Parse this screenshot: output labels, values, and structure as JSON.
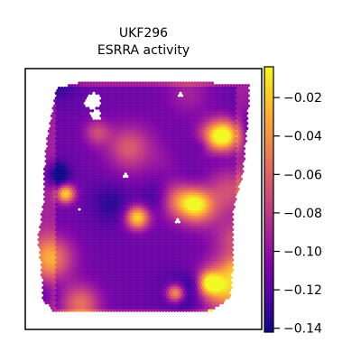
{
  "chart_data": {
    "type": "heatmap",
    "title": "UKF296",
    "subtitle": "ESRRA activity",
    "xlabel": "",
    "ylabel": "",
    "colormap": "plasma",
    "colorbar": {
      "min": -0.142,
      "max": -0.004,
      "ticks": [
        -0.02,
        -0.04,
        -0.06,
        -0.08,
        -0.1,
        -0.12,
        -0.14
      ],
      "tick_labels": [
        "−0.02",
        "−0.04",
        "−0.06",
        "−0.08",
        "−0.10",
        "−0.12",
        "−0.14"
      ],
      "placement": "right"
    },
    "value_range": [
      -0.142,
      -0.004
    ],
    "grid": false
  }
}
